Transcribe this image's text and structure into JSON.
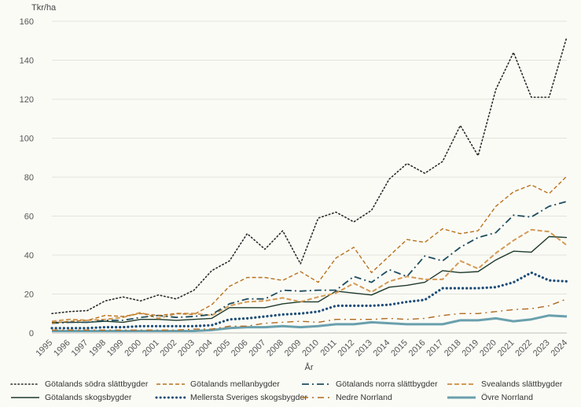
{
  "chart_data": {
    "type": "line",
    "ylabel": "Tkr/ha",
    "xlabel": "År",
    "ylim": [
      0,
      160
    ],
    "yticks": [
      0,
      20,
      40,
      60,
      80,
      100,
      120,
      140,
      160
    ],
    "categories": [
      "1995",
      "1996",
      "1997",
      "1998",
      "1999",
      "2000",
      "2001",
      "2002",
      "2003",
      "2004",
      "2005",
      "2006",
      "2007",
      "2008",
      "2009",
      "2010",
      "2011",
      "2012",
      "2013",
      "2014",
      "2015",
      "2016",
      "2017",
      "2018",
      "2019",
      "2020",
      "2021",
      "2022",
      "2023",
      "2024"
    ],
    "series": [
      {
        "name": "Götalands södra slättbygder",
        "color": "#2b2b2b",
        "style": "dotted",
        "values": [
          10,
          11,
          11.5,
          16.5,
          18.5,
          16.5,
          19.5,
          17.5,
          22,
          32,
          37,
          51,
          43,
          52.5,
          35.5,
          59,
          62,
          57,
          63,
          79,
          87,
          82,
          88,
          106.5,
          91,
          125,
          144,
          121,
          121,
          152
        ]
      },
      {
        "name": "Götalands mellanbygder",
        "color": "#b8721d",
        "style": "dashed",
        "values": [
          5,
          6,
          6.5,
          9,
          8.5,
          10,
          9,
          10,
          9.5,
          14.5,
          24,
          28.5,
          28.5,
          27,
          31.5,
          26,
          38.5,
          44,
          31,
          39.5,
          48,
          46.5,
          53.5,
          51,
          52.5,
          65,
          72.5,
          76,
          71.5,
          80.5
        ]
      },
      {
        "name": "Götalands norra slättbygder",
        "color": "#1f4e5f",
        "style": "dashdot",
        "values": [
          5,
          5.5,
          5.5,
          6.5,
          6.5,
          8,
          9,
          8,
          8.5,
          9.5,
          15,
          17.5,
          17.5,
          22,
          21.5,
          22,
          22,
          29,
          26,
          32.5,
          29,
          39.5,
          37,
          44,
          49,
          51.5,
          60.5,
          59.5,
          65,
          67.5
        ]
      },
      {
        "name": "Svealands slättbygder",
        "color": "#d39a55",
        "style": "longdash",
        "values": [
          6,
          7,
          6.5,
          7,
          8,
          10.5,
          7.5,
          10,
          10,
          9,
          14,
          16,
          16.5,
          18,
          16,
          18.5,
          20.5,
          25.5,
          21,
          26.5,
          29,
          27.5,
          27.5,
          37,
          33,
          41,
          47.5,
          53,
          52,
          45
        ]
      },
      {
        "name": "Götalands skogsbygder",
        "color": "#1e3a2a",
        "style": "solid",
        "values": [
          5.5,
          5.5,
          5.5,
          6,
          5.5,
          7,
          7,
          6.5,
          7,
          7.5,
          13,
          13,
          13,
          15,
          16,
          16,
          21.5,
          20.5,
          19.5,
          23.5,
          24.5,
          26,
          32,
          31,
          31.5,
          37.5,
          42,
          41.5,
          49.5,
          49
        ]
      },
      {
        "name": "Mellersta Sveriges skogsbygder",
        "color": "#1e4e78",
        "style": "heavydot",
        "values": [
          2.5,
          2.5,
          2.5,
          3,
          3,
          3.5,
          3.5,
          3.5,
          3.5,
          4,
          7,
          7.5,
          8.5,
          9.5,
          10,
          11,
          14,
          14,
          14,
          14.5,
          16,
          17,
          23,
          23,
          23,
          23.5,
          26,
          31,
          27,
          26.5
        ]
      },
      {
        "name": "Nedre Norrland",
        "color": "#b06a1f",
        "style": "dashdotsparse",
        "values": [
          1.5,
          1.5,
          1.5,
          1.5,
          1.5,
          1.5,
          1.5,
          1.5,
          2,
          2,
          3.5,
          3.5,
          5,
          5.5,
          6,
          5.5,
          7,
          7,
          7,
          7.5,
          7,
          7.5,
          9,
          10,
          10,
          11,
          12,
          12.5,
          14,
          17.5
        ]
      },
      {
        "name": "Övre Norrland",
        "color": "#6aa0ad",
        "style": "thick",
        "values": [
          1,
          1,
          1,
          1,
          1,
          1,
          1,
          1,
          1,
          1.5,
          2.5,
          3,
          3,
          3.5,
          3,
          3.5,
          4.5,
          4.5,
          5.5,
          5,
          4.5,
          4.5,
          4.5,
          6.5,
          6.5,
          7.5,
          6,
          7,
          9,
          8.5
        ]
      }
    ]
  }
}
